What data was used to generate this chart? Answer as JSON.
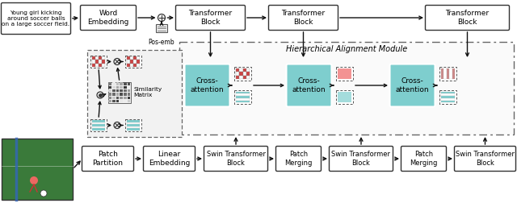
{
  "bg_color": "#ffffff",
  "teal_color": "#7ecece",
  "box_edge": "#333333",
  "arrow_color": "#111111",
  "ham_label": "Hierarchical Alignment Module",
  "pos_emb_label": "Pos-emb",
  "similarity_matrix_label": "Similarity\nMatrix"
}
